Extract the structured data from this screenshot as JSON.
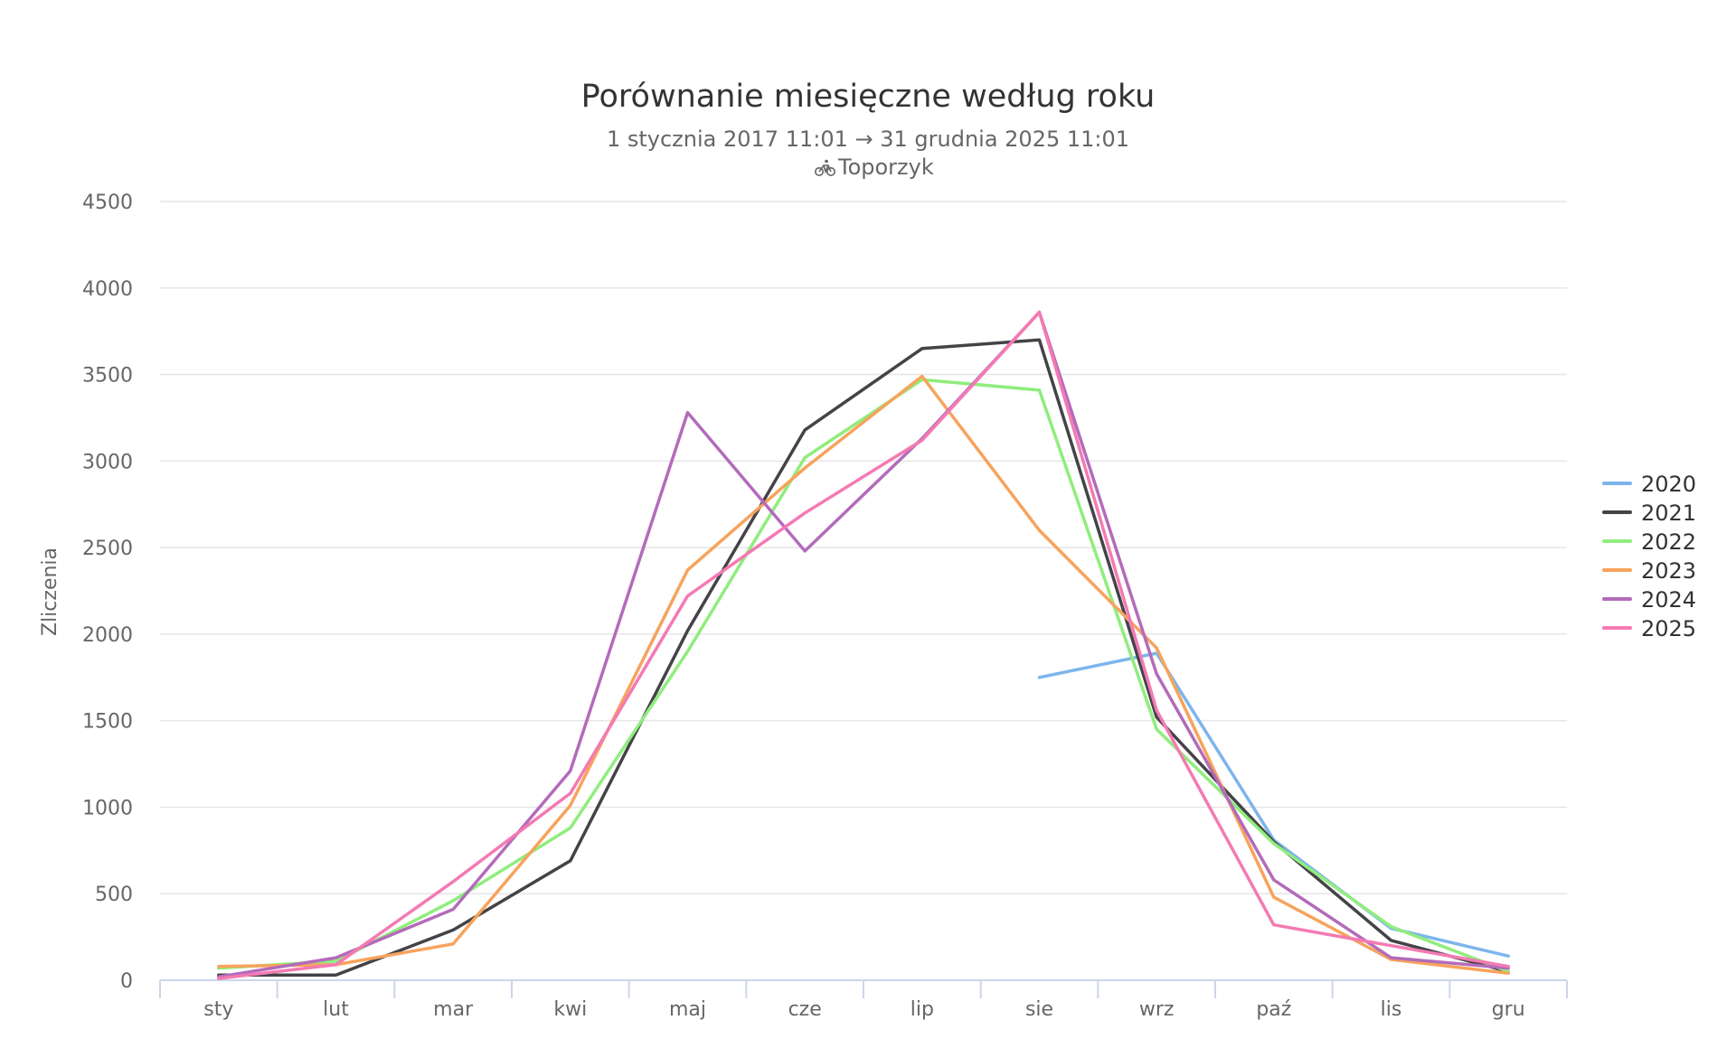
{
  "chart_data": {
    "type": "line",
    "title": "Porównanie miesięczne według roku",
    "subtitle": "1 stycznia 2017 11:01 → 31 grudnia 2025 11:01",
    "subtitle2": "Toporzyk",
    "subtitle2_icon": "bicycle-icon",
    "xlabel": "",
    "ylabel": "Zliczenia",
    "ylim": [
      0,
      4500
    ],
    "yticks": [
      0,
      500,
      1000,
      1500,
      2000,
      2500,
      3000,
      3500,
      4000,
      4500
    ],
    "grid": true,
    "legend_position": "right",
    "categories": [
      "sty",
      "lut",
      "mar",
      "kwi",
      "maj",
      "cze",
      "lip",
      "sie",
      "wrz",
      "paź",
      "lis",
      "gru"
    ],
    "series": [
      {
        "name": "2020",
        "color": "#7cb5ec",
        "values": [
          null,
          null,
          null,
          null,
          null,
          null,
          null,
          1750,
          1890,
          810,
          300,
          140
        ]
      },
      {
        "name": "2021",
        "color": "#434348",
        "values": [
          30,
          30,
          290,
          690,
          2020,
          3180,
          3650,
          3700,
          1520,
          800,
          230,
          50
        ]
      },
      {
        "name": "2022",
        "color": "#90ed7d",
        "values": [
          70,
          110,
          460,
          880,
          1900,
          3020,
          3470,
          3410,
          1450,
          790,
          310,
          50
        ]
      },
      {
        "name": "2023",
        "color": "#f7a35c",
        "values": [
          80,
          90,
          210,
          1010,
          2370,
          2960,
          3490,
          2600,
          1920,
          480,
          120,
          40
        ]
      },
      {
        "name": "2024",
        "color": "#b36bba",
        "values": [
          20,
          130,
          410,
          1210,
          3280,
          2480,
          3130,
          3860,
          1770,
          580,
          130,
          70
        ]
      },
      {
        "name": "2025",
        "color": "#f47ab3",
        "values": [
          10,
          90,
          570,
          1080,
          2220,
          2700,
          3120,
          3860,
          1560,
          320,
          200,
          80
        ]
      }
    ]
  }
}
